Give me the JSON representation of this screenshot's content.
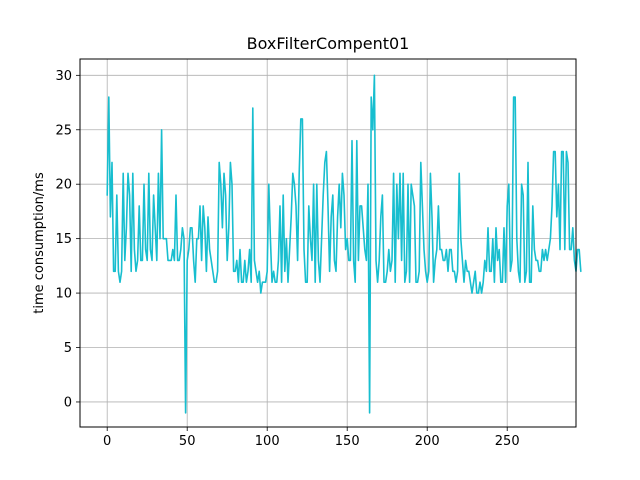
{
  "chart_data": {
    "type": "line",
    "title": "BoxFilterCompent01",
    "xlabel": "",
    "ylabel": "time consumption/ms",
    "xlim": [
      -17,
      293
    ],
    "ylim": [
      -2.3,
      31.5
    ],
    "xticks": [
      0,
      50,
      100,
      150,
      200,
      250
    ],
    "yticks": [
      0,
      5,
      10,
      15,
      20,
      25,
      30
    ],
    "grid": true,
    "series": [
      {
        "color": "#17becf",
        "values": [
          19,
          28,
          17,
          22,
          12,
          12,
          19,
          12,
          11,
          12,
          21,
          13,
          16,
          21,
          19,
          12,
          21,
          14,
          12,
          13,
          18,
          13,
          13,
          20,
          14,
          13,
          21,
          14,
          13,
          19,
          16,
          13,
          21,
          15,
          25,
          15,
          15,
          15,
          13,
          13,
          13,
          14,
          13,
          19,
          13,
          13,
          14,
          16,
          15,
          -1,
          13,
          14,
          16,
          16,
          13,
          11,
          15,
          15,
          18,
          13,
          18,
          16,
          12,
          17,
          14,
          13,
          12,
          11,
          11,
          12,
          22,
          20,
          16,
          21,
          19,
          13,
          16,
          22,
          20,
          12,
          12,
          13,
          11,
          14,
          11,
          11,
          13,
          11,
          12,
          14,
          11,
          27,
          13,
          12,
          11,
          12,
          10,
          11,
          11,
          11,
          12,
          20,
          15,
          11,
          12,
          11,
          11,
          13,
          18,
          11,
          19,
          12,
          15,
          11,
          14,
          17,
          21,
          20,
          18,
          13,
          21,
          26,
          26,
          14,
          11,
          11,
          18,
          15,
          13,
          20,
          11,
          20,
          13,
          11,
          15,
          19,
          22,
          23,
          18,
          12,
          17,
          19,
          13,
          12,
          17,
          20,
          16,
          21,
          19,
          14,
          15,
          13,
          13,
          24,
          13,
          11,
          24,
          13,
          18,
          18,
          16,
          14,
          13,
          20,
          -1,
          28,
          25,
          30,
          13,
          11,
          13,
          17,
          19,
          11,
          11,
          12,
          14,
          12,
          13,
          21,
          11,
          20,
          15,
          21,
          13,
          21,
          11,
          12,
          20,
          11,
          20,
          19,
          18,
          11,
          11,
          12,
          22,
          18,
          14,
          12,
          11,
          12,
          21,
          17,
          11,
          13,
          14,
          18,
          14,
          14,
          13,
          13,
          14,
          12,
          14,
          14,
          12,
          12,
          11,
          12,
          21,
          15,
          13,
          11,
          13,
          12,
          12,
          11,
          10,
          11,
          12,
          10,
          10,
          11,
          10,
          11,
          13,
          12,
          16,
          12,
          12,
          15,
          11,
          16,
          13,
          14,
          11,
          11,
          16,
          11,
          18,
          20,
          12,
          13,
          28,
          28,
          15,
          12,
          11,
          20,
          19,
          11,
          12,
          22,
          11,
          11,
          18,
          14,
          13,
          13,
          12,
          12,
          14,
          13,
          14,
          13,
          14,
          15,
          18,
          23,
          23,
          17,
          20,
          14,
          23,
          23,
          14,
          23,
          22,
          14,
          14,
          16,
          13,
          12,
          14,
          14,
          12
        ]
      }
    ]
  }
}
